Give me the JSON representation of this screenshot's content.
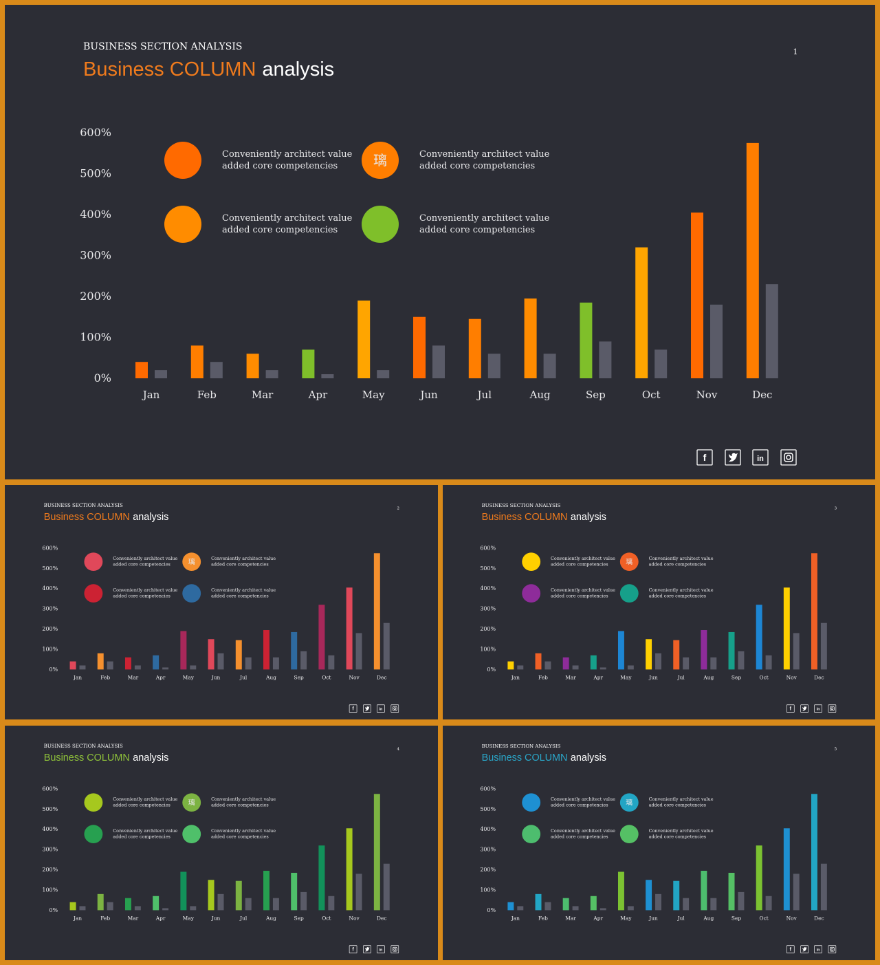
{
  "slides": [
    {
      "page": "1",
      "subtitle": "BUSINESS SECTION ANALYSIS",
      "title_accent": "Business COLUMN",
      "title_rest": "analysis",
      "accent_color": "#f07b1d",
      "legend": [
        {
          "text_line1": "Conveniently architect value",
          "text_line2": "added core competencies",
          "color": "#ff6a00",
          "glyph": ""
        },
        {
          "text_line1": "Conveniently architect value",
          "text_line2": "added core competencies",
          "color": "#ff7e00",
          "glyph": "璃"
        },
        {
          "text_line1": "Conveniently architect value",
          "text_line2": "added core competencies",
          "color": "#ff8c00",
          "glyph": ""
        },
        {
          "text_line1": "Conveniently architect value",
          "text_line2": "added core competencies",
          "color": "#7fbf2a",
          "glyph": ""
        }
      ],
      "bar_colors": [
        "#ff6a00",
        "#ff7e00",
        "#ff8c00",
        "#7fbf2a",
        "#ffa500",
        "#ff6a00",
        "#ff7e00",
        "#ff8c00",
        "#7fbf2a",
        "#ffa500",
        "#ff6a00",
        "#ff7e00"
      ],
      "social": [
        "f",
        "t",
        "in",
        "ig"
      ]
    },
    {
      "page": "2",
      "subtitle": "BUSINESS SECTION ANALYSIS",
      "title_accent": "Business COLUMN",
      "title_rest": "analysis",
      "accent_color": "#f07b1d",
      "legend": [
        {
          "text_line1": "Conveniently architect value",
          "text_line2": "added core competencies",
          "color": "#e0485a",
          "glyph": ""
        },
        {
          "text_line1": "Conveniently architect value",
          "text_line2": "added core competencies",
          "color": "#f5902e",
          "glyph": "璃"
        },
        {
          "text_line1": "Conveniently architect value",
          "text_line2": "added core competencies",
          "color": "#cc2233",
          "glyph": ""
        },
        {
          "text_line1": "Conveniently architect value",
          "text_line2": "added core competencies",
          "color": "#2e6aa0",
          "glyph": ""
        }
      ],
      "bar_colors": [
        "#e0485a",
        "#f5902e",
        "#cc2233",
        "#2e6aa0",
        "#a8285a",
        "#e0485a",
        "#f5902e",
        "#cc2233",
        "#2e6aa0",
        "#a8285a",
        "#e0485a",
        "#f5902e"
      ],
      "social": [
        "f",
        "t",
        "in",
        "ig"
      ]
    },
    {
      "page": "3",
      "subtitle": "BUSINESS SECTION ANALYSIS",
      "title_accent": "Business COLUMN",
      "title_rest": "analysis",
      "accent_color": "#f07b1d",
      "legend": [
        {
          "text_line1": "Conveniently architect value",
          "text_line2": "added core competencies",
          "color": "#ffd000",
          "glyph": ""
        },
        {
          "text_line1": "Conveniently architect value",
          "text_line2": "added core competencies",
          "color": "#f06026",
          "glyph": "璃"
        },
        {
          "text_line1": "Conveniently architect value",
          "text_line2": "added core competencies",
          "color": "#8e2c9a",
          "glyph": ""
        },
        {
          "text_line1": "Conveniently architect value",
          "text_line2": "added core competencies",
          "color": "#16a08a",
          "glyph": ""
        }
      ],
      "bar_colors": [
        "#ffd000",
        "#f06026",
        "#8e2c9a",
        "#16a08a",
        "#1d86d4",
        "#ffd000",
        "#f06026",
        "#8e2c9a",
        "#16a08a",
        "#1d86d4",
        "#ffd000",
        "#f06026"
      ],
      "social": [
        "f",
        "t",
        "in",
        "ig"
      ]
    },
    {
      "page": "4",
      "subtitle": "BUSINESS SECTION ANALYSIS",
      "title_accent": "Business COLUMN",
      "title_rest": "analysis",
      "accent_color": "#8fc23a",
      "legend": [
        {
          "text_line1": "Conveniently architect value",
          "text_line2": "added core competencies",
          "color": "#a6c81e",
          "glyph": ""
        },
        {
          "text_line1": "Conveniently architect value",
          "text_line2": "added core competencies",
          "color": "#7cb342",
          "glyph": "璃"
        },
        {
          "text_line1": "Conveniently architect value",
          "text_line2": "added core competencies",
          "color": "#27a050",
          "glyph": ""
        },
        {
          "text_line1": "Conveniently architect value",
          "text_line2": "added core competencies",
          "color": "#4fc06a",
          "glyph": ""
        }
      ],
      "bar_colors": [
        "#a6c81e",
        "#7cb342",
        "#27a050",
        "#4fc06a",
        "#12915a",
        "#a6c81e",
        "#7cb342",
        "#27a050",
        "#4fc06a",
        "#12915a",
        "#a6c81e",
        "#7cb342"
      ],
      "social": [
        "f",
        "t",
        "in",
        "ig"
      ]
    },
    {
      "page": "5",
      "subtitle": "BUSINESS SECTION ANALYSIS",
      "title_accent": "Business COLUMN",
      "title_rest": "analysis",
      "accent_color": "#2aa7c9",
      "legend": [
        {
          "text_line1": "Conveniently architect value",
          "text_line2": "added core competencies",
          "color": "#1e90d2",
          "glyph": ""
        },
        {
          "text_line1": "Conveniently architect value",
          "text_line2": "added core competencies",
          "color": "#22a5c4",
          "glyph": "璃"
        },
        {
          "text_line1": "Conveniently architect value",
          "text_line2": "added core competencies",
          "color": "#4dbd6e",
          "glyph": ""
        },
        {
          "text_line1": "Conveniently architect value",
          "text_line2": "added core competencies",
          "color": "#55c065",
          "glyph": ""
        }
      ],
      "bar_colors": [
        "#1e90d2",
        "#22a5c4",
        "#4dbd6e",
        "#55c065",
        "#7cc232",
        "#1e90d2",
        "#22a5c4",
        "#4dbd6e",
        "#55c065",
        "#7cc232",
        "#1e90d2",
        "#22a5c4"
      ],
      "social": [
        "f",
        "t",
        "in",
        "ig"
      ]
    }
  ],
  "chart_data": {
    "type": "bar",
    "categories": [
      "Jan",
      "Feb",
      "Mar",
      "Apr",
      "May",
      "Jun",
      "Jul",
      "Aug",
      "Sep",
      "Oct",
      "Nov",
      "Dec"
    ],
    "series": [
      {
        "values": [
          40,
          80,
          60,
          70,
          190,
          150,
          145,
          195,
          185,
          320,
          405,
          575
        ]
      },
      {
        "values": [
          20,
          40,
          20,
          10,
          20,
          80,
          60,
          60,
          90,
          70,
          180,
          230
        ]
      }
    ],
    "series_colors": [
      "per-month accent colors",
      "#5a5b68"
    ],
    "ylim": [
      0,
      600
    ],
    "yticks": [
      "0%",
      "100%",
      "200%",
      "300%",
      "400%",
      "500%",
      "600%"
    ],
    "xlabel": "",
    "ylabel": "",
    "grid": false,
    "legend_placement": "top-left"
  }
}
